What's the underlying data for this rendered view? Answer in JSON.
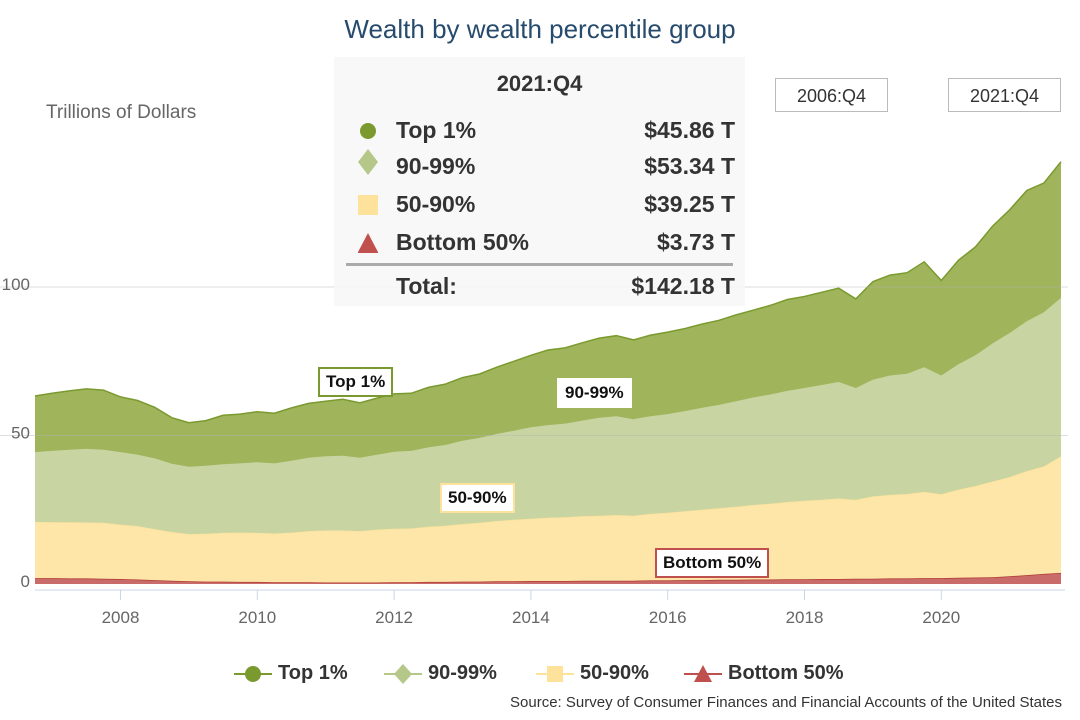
{
  "chart_data": {
    "type": "area",
    "stacked": true,
    "title": "Wealth by wealth percentile group",
    "ylabel": "Trillions of Dollars",
    "xlabel": "",
    "x_start": "2006:Q4",
    "x_end": "2021:Q4",
    "x_frequency": "quarterly",
    "xticks": [
      "2008",
      "2010",
      "2012",
      "2014",
      "2016",
      "2018",
      "2020"
    ],
    "yticks": [
      "0",
      "50",
      "100"
    ],
    "ylim": [
      0,
      150
    ],
    "grid": true,
    "legend_position": "bottom",
    "series": [
      {
        "name": "Bottom 50%",
        "color": "#c0504d",
        "marker": "triangle",
        "values": [
          2.0,
          2.0,
          1.9,
          1.9,
          1.8,
          1.7,
          1.5,
          1.3,
          1.1,
          0.9,
          0.8,
          0.8,
          0.7,
          0.7,
          0.6,
          0.6,
          0.6,
          0.5,
          0.5,
          0.5,
          0.5,
          0.6,
          0.6,
          0.7,
          0.7,
          0.8,
          0.8,
          0.9,
          0.9,
          1.0,
          1.0,
          1.0,
          1.1,
          1.1,
          1.1,
          1.1,
          1.2,
          1.2,
          1.3,
          1.3,
          1.4,
          1.4,
          1.5,
          1.5,
          1.6,
          1.6,
          1.7,
          1.7,
          1.8,
          1.8,
          1.9,
          1.9,
          2.0,
          2.0,
          2.1,
          2.2,
          2.3,
          2.6,
          3.0,
          3.4,
          3.73
        ]
      },
      {
        "name": "50-90%",
        "color": "#fde6a8",
        "marker": "square",
        "values": [
          18.9,
          18.8,
          18.9,
          18.8,
          18.8,
          18.3,
          18.0,
          17.2,
          16.4,
          15.9,
          16.1,
          16.4,
          16.6,
          16.5,
          16.4,
          16.7,
          17.2,
          17.5,
          17.5,
          17.3,
          17.8,
          18.0,
          18.1,
          18.6,
          18.9,
          19.4,
          19.8,
          20.3,
          20.7,
          21.0,
          21.3,
          21.5,
          21.7,
          21.9,
          22.1,
          21.9,
          22.4,
          22.8,
          23.2,
          23.7,
          24.1,
          24.6,
          25.1,
          25.5,
          26.0,
          26.4,
          26.7,
          27.1,
          26.5,
          27.7,
          28.1,
          28.4,
          29.0,
          28.2,
          29.7,
          30.8,
          32.2,
          33.4,
          35.0,
          36.2,
          39.25
        ]
      },
      {
        "name": "90-99%",
        "color": "#c8d5a3",
        "marker": "diamond",
        "values": [
          23.5,
          24.0,
          24.4,
          24.8,
          24.6,
          24.4,
          24.0,
          23.8,
          23.0,
          22.7,
          22.9,
          23.1,
          23.3,
          23.8,
          23.6,
          24.2,
          24.7,
          25.0,
          25.2,
          24.7,
          25.2,
          25.9,
          26.1,
          26.7,
          27.2,
          28.0,
          28.6,
          29.3,
          30.0,
          30.8,
          31.2,
          31.5,
          32.2,
          33.0,
          33.3,
          32.5,
          32.9,
          33.2,
          33.7,
          34.3,
          34.8,
          35.5,
          36.2,
          36.8,
          37.4,
          38.0,
          38.6,
          39.2,
          37.7,
          39.3,
          40.2,
          40.5,
          42.0,
          40.0,
          42.2,
          44.0,
          46.5,
          48.5,
          50.5,
          51.9,
          53.34
        ]
      },
      {
        "name": "Top 1%",
        "color": "#a0b55b",
        "marker": "circle",
        "values": [
          18.9,
          19.4,
          19.8,
          20.2,
          20.1,
          18.6,
          18.3,
          17.2,
          15.5,
          14.8,
          15.2,
          16.5,
          16.6,
          17.0,
          16.9,
          17.8,
          18.3,
          18.5,
          19.0,
          18.5,
          19.1,
          19.5,
          19.4,
          20.2,
          20.5,
          21.3,
          21.5,
          22.5,
          23.4,
          24.2,
          25.3,
          25.5,
          26.2,
          26.8,
          27.1,
          26.7,
          27.3,
          27.6,
          27.8,
          28.2,
          28.5,
          29.1,
          29.4,
          30.0,
          30.8,
          30.8,
          31.2,
          31.6,
          30.0,
          33.0,
          33.8,
          34.0,
          35.5,
          32.0,
          35.0,
          36.5,
          39.5,
          41.5,
          44.0,
          43.5,
          45.86
        ]
      }
    ],
    "annotations": [
      "Top 1%",
      "90-99%",
      "50-90%",
      "Bottom 50%"
    ],
    "source": "Source: Survey of Consumer Finances and Financial Accounts of the United States"
  },
  "range_buttons": {
    "start": "2006:Q4",
    "end": "2021:Q4"
  },
  "tooltip": {
    "period": "2021:Q4",
    "rows": [
      {
        "label": "Top 1%",
        "value": "$45.86 T"
      },
      {
        "label": "90-99%",
        "value": "$53.34 T"
      },
      {
        "label": "50-90%",
        "value": "$39.25 T"
      },
      {
        "label": "Bottom 50%",
        "value": "$3.73 T"
      }
    ],
    "total_label": "Total:",
    "total_value": "$142.18 T"
  },
  "legend": [
    "Top 1%",
    "90-99%",
    "50-90%",
    "Bottom 50%"
  ]
}
